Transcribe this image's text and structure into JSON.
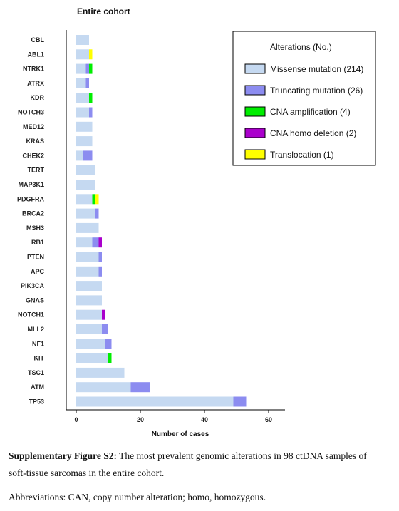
{
  "chart_data": {
    "type": "bar",
    "stacked": true,
    "orientation": "horizontal",
    "title": "Entire cohort",
    "xlabel": "Number of cases",
    "ylabel": "",
    "xlim": [
      0,
      65
    ],
    "xticks": [
      0,
      20,
      40,
      60
    ],
    "grid": false,
    "legend_position": "top-right",
    "legend_title": "Alterations (No.)",
    "categories": [
      "CBL",
      "ABL1",
      "NTRK1",
      "ATRX",
      "KDR",
      "NOTCH3",
      "MED12",
      "KRAS",
      "CHEK2",
      "TERT",
      "MAP3K1",
      "PDGFRA",
      "BRCA2",
      "MSH3",
      "RB1",
      "PTEN",
      "APC",
      "PIK3CA",
      "GNAS",
      "NOTCH1",
      "MLL2",
      "NF1",
      "KIT",
      "TSC1",
      "ATM",
      "TP53"
    ],
    "series": [
      {
        "name": "Missense mutation (214)",
        "color": "#c5d9f1",
        "values": [
          4,
          4,
          3,
          3,
          4,
          4,
          5,
          5,
          2,
          6,
          6,
          5,
          6,
          7,
          5,
          7,
          7,
          8,
          8,
          8,
          8,
          9,
          10,
          15,
          17,
          49
        ]
      },
      {
        "name": "Truncating mutation (26)",
        "color": "#8c8cf0",
        "values": [
          0,
          0,
          1,
          1,
          0,
          1,
          0,
          0,
          3,
          0,
          0,
          0,
          1,
          0,
          2,
          1,
          1,
          0,
          0,
          0,
          2,
          2,
          0,
          0,
          6,
          4
        ]
      },
      {
        "name": "CNA amplification (4)",
        "color": "#00ee00",
        "values": [
          0,
          0,
          1,
          0,
          1,
          0,
          0,
          0,
          0,
          0,
          0,
          1,
          0,
          0,
          0,
          0,
          0,
          0,
          0,
          0,
          0,
          0,
          1,
          0,
          0,
          0
        ]
      },
      {
        "name": "CNA homo deletion (2)",
        "color": "#aa00cc",
        "values": [
          0,
          0,
          0,
          0,
          0,
          0,
          0,
          0,
          0,
          0,
          0,
          0,
          0,
          0,
          1,
          0,
          0,
          0,
          0,
          1,
          0,
          0,
          0,
          0,
          0,
          0
        ]
      },
      {
        "name": "Translocation (1)",
        "color": "#ffff00",
        "values": [
          0,
          1,
          0,
          0,
          0,
          0,
          0,
          0,
          0,
          0,
          0,
          1,
          0,
          0,
          0,
          0,
          0,
          0,
          0,
          0,
          0,
          0,
          0,
          0,
          0,
          0
        ]
      }
    ]
  },
  "caption": {
    "label": "Supplementary Figure S2:",
    "text": " The most prevalent genomic alterations in 98 ctDNA samples of soft-tissue sarcomas in the entire cohort.",
    "abbreviations": "Abbreviations: CAN, copy number alteration; homo, homozygous."
  }
}
